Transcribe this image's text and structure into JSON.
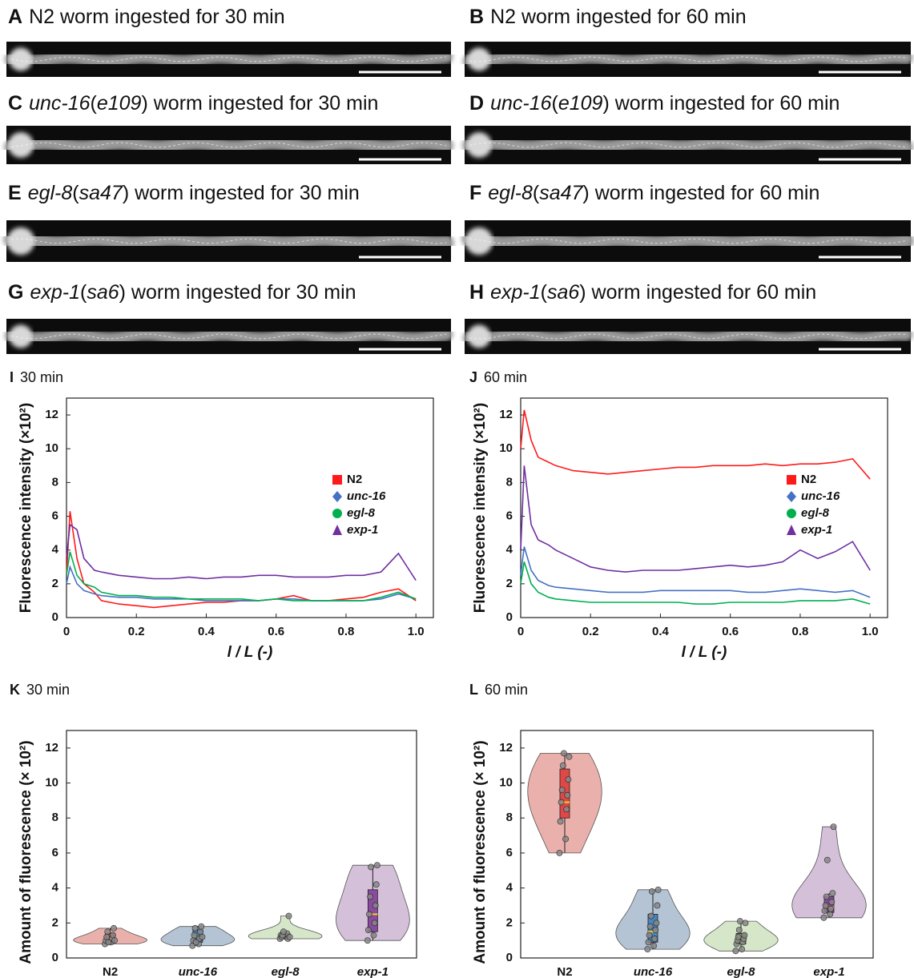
{
  "panels": [
    {
      "label": "A",
      "title": [
        {
          "text": "N2 worm ingested for 30 min",
          "italic": false
        }
      ]
    },
    {
      "label": "B",
      "title": [
        {
          "text": "N2 worm ingested for 60 min",
          "italic": false
        }
      ]
    },
    {
      "label": "C",
      "title": [
        {
          "text": "unc-16",
          "italic": true
        },
        {
          "text": "(",
          "italic": false
        },
        {
          "text": "e109",
          "italic": true
        },
        {
          "text": ") worm ingested for 30 min",
          "italic": false
        }
      ]
    },
    {
      "label": "D",
      "title": [
        {
          "text": "unc-16",
          "italic": true
        },
        {
          "text": "(",
          "italic": false
        },
        {
          "text": "e109",
          "italic": true
        },
        {
          "text": ") worm ingested for 60 min",
          "italic": false
        }
      ]
    },
    {
      "label": "E",
      "title": [
        {
          "text": "egl-8",
          "italic": true
        },
        {
          "text": "(",
          "italic": false
        },
        {
          "text": "sa47",
          "italic": true
        },
        {
          "text": ") worm ingested for 30 min",
          "italic": false
        }
      ]
    },
    {
      "label": "F",
      "title": [
        {
          "text": "egl-8",
          "italic": true
        },
        {
          "text": "(",
          "italic": false
        },
        {
          "text": "sa47",
          "italic": true
        },
        {
          "text": ") worm ingested for 60 min",
          "italic": false
        }
      ]
    },
    {
      "label": "G",
      "title": [
        {
          "text": "exp-1",
          "italic": true
        },
        {
          "text": "(",
          "italic": false
        },
        {
          "text": "sa6",
          "italic": true
        },
        {
          "text": ") worm ingested for 30 min",
          "italic": false
        }
      ]
    },
    {
      "label": "H",
      "title": [
        {
          "text": "exp-1",
          "italic": true
        },
        {
          "text": "(",
          "italic": false
        },
        {
          "text": "sa6",
          "italic": true
        },
        {
          "text": ") worm ingested for 60 min",
          "italic": false
        }
      ]
    }
  ],
  "chart_data": [
    {
      "type": "line",
      "label": "I",
      "title": "30 min",
      "xlabel": "l / L (-)",
      "ylabel": "Fluorescence intensity (×10²)",
      "legend": "right",
      "x": [
        0,
        0.01,
        0.03,
        0.05,
        0.08,
        0.1,
        0.15,
        0.2,
        0.25,
        0.3,
        0.35,
        0.4,
        0.45,
        0.5,
        0.55,
        0.6,
        0.65,
        0.7,
        0.75,
        0.8,
        0.85,
        0.9,
        0.95,
        1.0
      ],
      "xlim": [
        0,
        1.05
      ],
      "xticks": [
        0,
        0.2,
        0.4,
        0.6,
        0.8,
        {
          "value": 1,
          "label": "1.0"
        }
      ],
      "ylim": [
        0,
        13
      ],
      "yticks": [
        0,
        2,
        4,
        6,
        8,
        10,
        12
      ],
      "series": [
        {
          "name": "N2",
          "italic": false,
          "marker": "square",
          "color": "#ff1a1a",
          "values": [
            2.5,
            6.3,
            3.5,
            2.0,
            1.5,
            1.0,
            0.8,
            0.7,
            0.6,
            0.7,
            0.8,
            0.9,
            0.9,
            1.0,
            1.0,
            1.1,
            1.3,
            1.0,
            1.0,
            1.1,
            1.2,
            1.5,
            1.7,
            1.0
          ]
        },
        {
          "name": "unc-16",
          "italic": true,
          "marker": "diamond",
          "color": "#4472c4",
          "values": [
            2.0,
            3.0,
            2.0,
            1.6,
            1.4,
            1.3,
            1.2,
            1.2,
            1.1,
            1.1,
            1.1,
            1.0,
            1.0,
            1.0,
            1.0,
            1.1,
            1.1,
            1.0,
            1.0,
            1.0,
            1.0,
            1.1,
            1.4,
            1.1
          ]
        },
        {
          "name": "egl-8",
          "italic": true,
          "marker": "circle",
          "color": "#00b050",
          "values": [
            2.5,
            3.9,
            2.5,
            2.0,
            1.8,
            1.5,
            1.3,
            1.3,
            1.2,
            1.2,
            1.1,
            1.1,
            1.1,
            1.1,
            1.0,
            1.1,
            1.0,
            1.0,
            1.0,
            1.0,
            1.0,
            1.2,
            1.5,
            1.1
          ]
        },
        {
          "name": "exp-1",
          "italic": true,
          "marker": "triangle",
          "color": "#7030a0",
          "values": [
            3.5,
            5.5,
            5.2,
            3.5,
            2.8,
            2.7,
            2.5,
            2.4,
            2.3,
            2.3,
            2.4,
            2.3,
            2.4,
            2.4,
            2.5,
            2.5,
            2.4,
            2.4,
            2.4,
            2.5,
            2.5,
            2.7,
            3.8,
            2.2
          ]
        }
      ]
    },
    {
      "type": "line",
      "label": "J",
      "title": "60 min",
      "xlabel": "l / L (-)",
      "ylabel": "Fluorescence intensity (×10²)",
      "legend": "right",
      "x": [
        0,
        0.01,
        0.03,
        0.05,
        0.08,
        0.1,
        0.15,
        0.2,
        0.25,
        0.3,
        0.35,
        0.4,
        0.45,
        0.5,
        0.55,
        0.6,
        0.65,
        0.7,
        0.75,
        0.8,
        0.85,
        0.9,
        0.95,
        1.0
      ],
      "xlim": [
        0,
        1.05
      ],
      "xticks": [
        0,
        0.2,
        0.4,
        0.6,
        0.8,
        {
          "value": 1,
          "label": "1.0"
        }
      ],
      "ylim": [
        0,
        13
      ],
      "yticks": [
        0,
        2,
        4,
        6,
        8,
        10,
        12
      ],
      "series": [
        {
          "name": "N2",
          "italic": false,
          "marker": "square",
          "color": "#ff1a1a",
          "values": [
            10,
            12.3,
            10.5,
            9.5,
            9.2,
            9.0,
            8.7,
            8.6,
            8.5,
            8.6,
            8.7,
            8.8,
            8.9,
            8.9,
            9.0,
            9.0,
            9.0,
            9.1,
            9.0,
            9.1,
            9.1,
            9.2,
            9.4,
            8.2
          ]
        },
        {
          "name": "unc-16",
          "italic": true,
          "marker": "diamond",
          "color": "#4472c4",
          "values": [
            2.5,
            4.2,
            2.8,
            2.2,
            1.9,
            1.8,
            1.7,
            1.6,
            1.5,
            1.5,
            1.5,
            1.6,
            1.6,
            1.6,
            1.6,
            1.6,
            1.5,
            1.5,
            1.6,
            1.7,
            1.6,
            1.5,
            1.6,
            1.2
          ]
        },
        {
          "name": "egl-8",
          "italic": true,
          "marker": "circle",
          "color": "#00b050",
          "values": [
            2.0,
            3.3,
            2.0,
            1.5,
            1.2,
            1.1,
            1.0,
            0.9,
            0.9,
            0.9,
            0.9,
            0.9,
            0.9,
            0.8,
            0.8,
            0.9,
            0.9,
            0.9,
            0.9,
            1.0,
            1.0,
            1.0,
            1.1,
            0.8
          ]
        },
        {
          "name": "exp-1",
          "italic": true,
          "marker": "triangle",
          "color": "#7030a0",
          "values": [
            4.0,
            9.0,
            5.5,
            4.6,
            4.3,
            4.0,
            3.5,
            3.0,
            2.8,
            2.7,
            2.8,
            2.8,
            2.8,
            2.9,
            3.0,
            3.1,
            3.0,
            3.1,
            3.3,
            4.0,
            3.5,
            3.9,
            4.5,
            2.8
          ]
        }
      ]
    },
    {
      "type": "violin",
      "label": "K",
      "title": "30 min",
      "ylabel": "Amount of fluorescence (× 10²)",
      "ylim": [
        0,
        13
      ],
      "yticks": [
        0,
        2,
        4,
        6,
        8,
        10,
        12
      ],
      "groups": [
        {
          "name": "N2",
          "italic": false,
          "color": "#eab0ac",
          "box_color": "#e04848",
          "points": [
            0.8,
            0.9,
            1.0,
            1.1,
            1.2,
            1.3,
            1.5,
            1.7,
            0.9,
            1.0
          ],
          "min": 0.8,
          "q1": 0.9,
          "median": 1.1,
          "q3": 1.4,
          "max": 1.7
        },
        {
          "name": "unc-16",
          "italic": true,
          "color": "#b4c4d4",
          "box_color": "#4a86c0",
          "points": [
            0.7,
            0.8,
            1.0,
            1.1,
            1.3,
            1.5,
            1.7,
            1.8,
            0.9,
            1.2
          ],
          "min": 0.7,
          "q1": 0.9,
          "median": 1.2,
          "q3": 1.6,
          "max": 1.8
        },
        {
          "name": "egl-8",
          "italic": true,
          "color": "#d6e6c8",
          "box_color": "#8ab060",
          "points": [
            1.1,
            1.2,
            1.3,
            1.4,
            1.2,
            1.1,
            1.3,
            2.4,
            1.5,
            1.2
          ],
          "min": 1.1,
          "q1": 1.15,
          "median": 1.25,
          "q3": 1.4,
          "max": 1.5
        },
        {
          "name": "exp-1",
          "italic": true,
          "color": "#d4c0d8",
          "box_color": "#8a4aa0",
          "points": [
            1.0,
            1.3,
            1.6,
            2.0,
            2.5,
            3.0,
            3.5,
            4.2,
            5.2,
            5.3
          ],
          "min": 1.0,
          "q1": 1.5,
          "median": 2.5,
          "q3": 3.9,
          "max": 5.3
        }
      ]
    },
    {
      "type": "violin",
      "label": "L",
      "title": "60 min",
      "ylabel": "Amount of fluorescence (× 10²)",
      "ylim": [
        0,
        13
      ],
      "yticks": [
        0,
        2,
        4,
        6,
        8,
        10,
        12
      ],
      "groups": [
        {
          "name": "N2",
          "italic": false,
          "color": "#eab0ac",
          "box_color": "#e04848",
          "points": [
            6.0,
            6.8,
            7.8,
            8.5,
            8.9,
            9.3,
            9.6,
            10.2,
            11.0,
            11.5,
            11.7
          ],
          "min": 6.0,
          "q1": 8.0,
          "median": 8.9,
          "q3": 10.8,
          "max": 11.7
        },
        {
          "name": "unc-16",
          "italic": true,
          "color": "#b4c4d4",
          "box_color": "#4a86c0",
          "points": [
            0.5,
            0.7,
            0.9,
            1.1,
            1.3,
            1.6,
            1.8,
            2.0,
            2.4,
            3.0,
            3.8,
            3.9
          ],
          "min": 0.5,
          "q1": 0.9,
          "median": 1.5,
          "q3": 2.5,
          "max": 3.9
        },
        {
          "name": "egl-8",
          "italic": true,
          "color": "#d6e6c8",
          "box_color": "#8ab060",
          "points": [
            0.4,
            0.5,
            0.8,
            0.9,
            1.0,
            1.1,
            1.2,
            1.3,
            1.6,
            2.0,
            2.1
          ],
          "min": 0.4,
          "q1": 0.8,
          "median": 1.0,
          "q3": 1.4,
          "max": 2.1
        },
        {
          "name": "exp-1",
          "italic": true,
          "color": "#d4c0d8",
          "box_color": "#8a4aa0",
          "points": [
            2.3,
            2.5,
            2.7,
            2.8,
            3.0,
            3.2,
            3.5,
            3.7,
            5.6,
            7.5
          ],
          "min": 2.3,
          "q1": 2.6,
          "median": 2.9,
          "q3": 3.5,
          "max": 3.7
        }
      ]
    }
  ]
}
